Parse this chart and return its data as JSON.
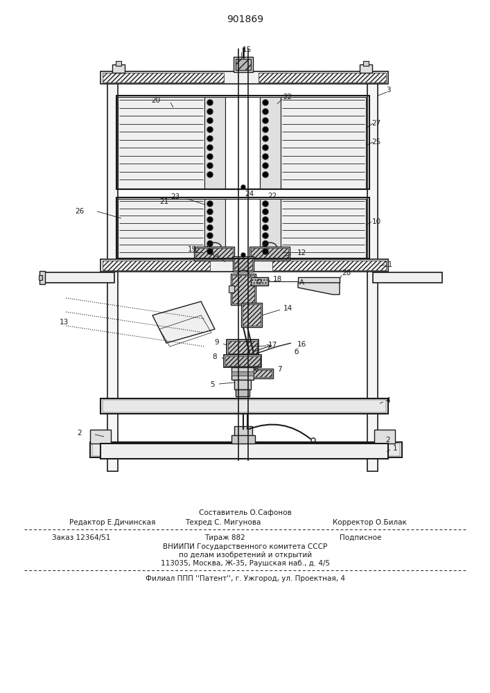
{
  "patent_number": "901869",
  "bg_color": "#ffffff",
  "dc": "#1a1a1a",
  "footer_composer": "Составитель О.Сафонов",
  "footer_editor": "Редактор Е.Дичинская",
  "footer_tech": "Техред С. Мигунова",
  "footer_corrector": "Корректор О.Билак",
  "footer_order": "Заказ 12364/51",
  "footer_print": "Тираж 882",
  "footer_sub": "Подписное",
  "footer_org": "ВНИИПИ Государственного комитета СССР",
  "footer_about": "по делам изобретений и открытий",
  "footer_addr": "113035, Москва, Ж-35, Раушская наб., д. 4/5",
  "footer_branch": "Филиал ППП ''Патент'', г. Ужгород, ул. Проектная, 4",
  "fig_width": 7.07,
  "fig_height": 10.0,
  "dpi": 100
}
